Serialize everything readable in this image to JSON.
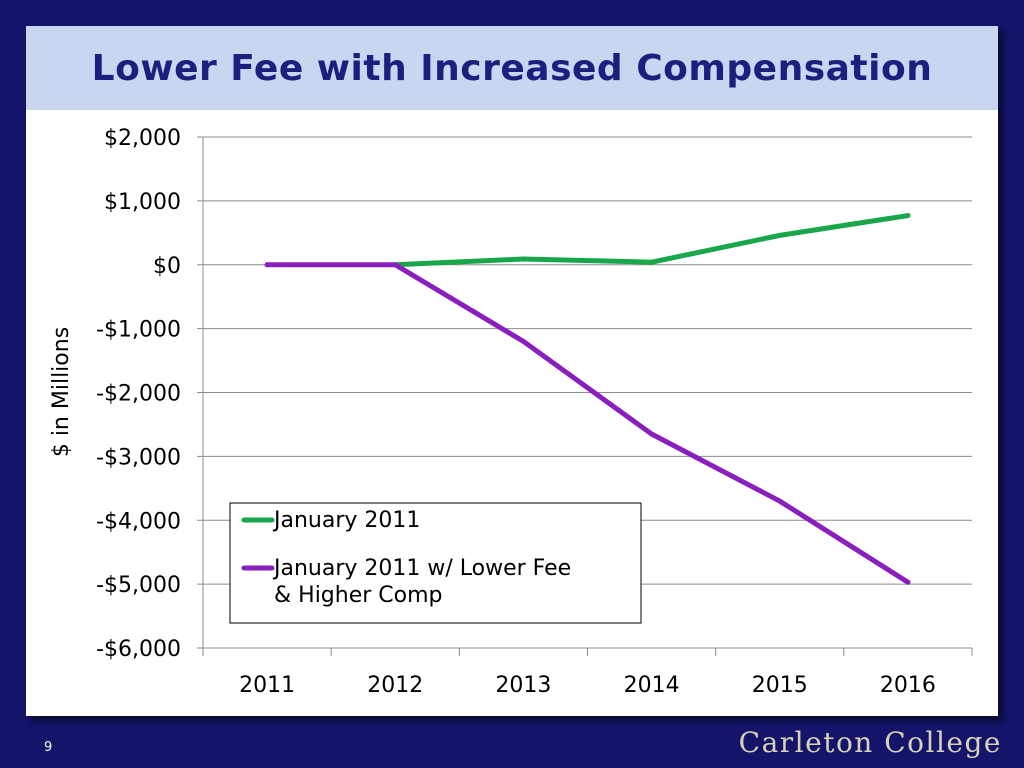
{
  "slide": {
    "title": "Lower Fee with Increased Compensation",
    "page_number": "9",
    "brand": "Carleton College"
  },
  "colors": {
    "background": "#14146a",
    "title_bar": "#c8d6ef",
    "title_text": "#1d1f7e",
    "series_green": "#1aa64a",
    "series_purple": "#8a1fc0"
  },
  "chart_data": {
    "type": "line",
    "title": "",
    "xlabel": "",
    "ylabel": "$ in Millions",
    "categories": [
      "2011",
      "2012",
      "2013",
      "2014",
      "2015",
      "2016"
    ],
    "ylim": [
      -6000,
      2000
    ],
    "yticks": [
      2000,
      1000,
      0,
      -1000,
      -2000,
      -3000,
      -4000,
      -5000,
      -6000
    ],
    "ytick_labels": [
      "$2,000",
      "$1,000",
      "$0",
      "-$1,000",
      "-$2,000",
      "-$3,000",
      "-$4,000",
      "-$5,000",
      "-$6,000"
    ],
    "grid": true,
    "legend_position": "bottom-left",
    "series": [
      {
        "name": "January 2011",
        "legend_lines": [
          "January 2011"
        ],
        "color": "#1aa64a",
        "values": [
          null,
          0,
          90,
          40,
          460,
          770
        ]
      },
      {
        "name": "January 2011 w/ Lower Fee & Higher Comp",
        "legend_lines": [
          "January 2011 w/ Lower Fee",
          "& Higher Comp"
        ],
        "color": "#8a1fc0",
        "values": [
          0,
          0,
          -1200,
          -2650,
          -3700,
          -4970
        ]
      }
    ]
  }
}
